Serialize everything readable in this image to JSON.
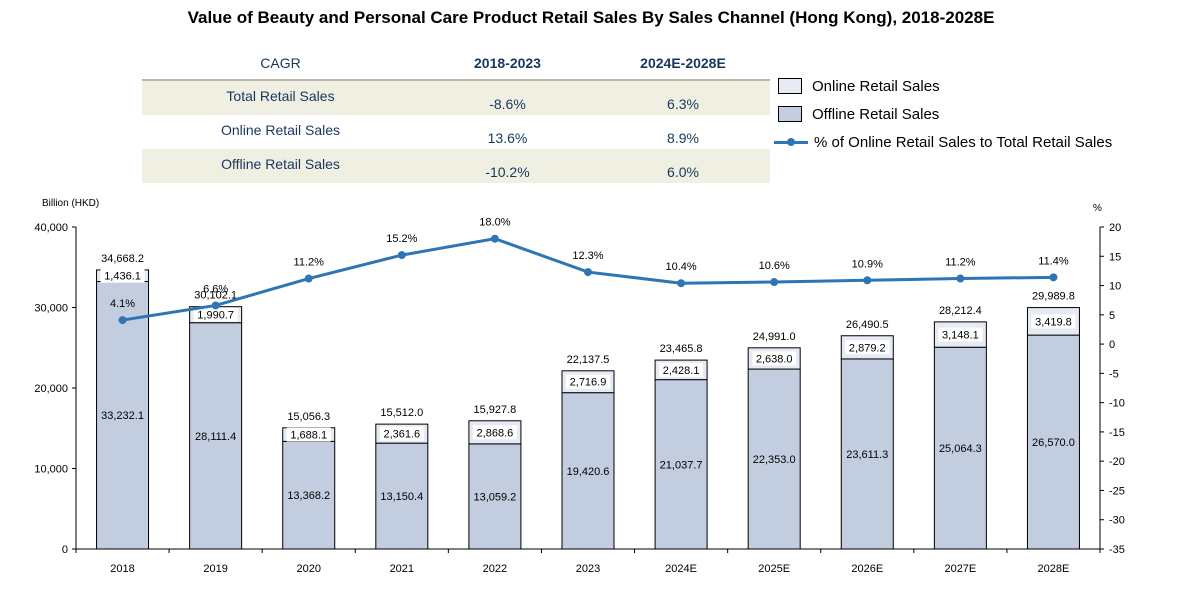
{
  "title": "Value of Beauty and Personal Care Product Retail Sales By Sales Channel (Hong Kong), 2018-2028E",
  "cagr_table": {
    "header": [
      "CAGR",
      "2018-2023",
      "2024E-2028E"
    ],
    "rows": [
      {
        "label": "Total Retail Sales",
        "v1": "-8.6%",
        "v2": "6.3%"
      },
      {
        "label": "Online Retail Sales",
        "v1": "13.6%",
        "v2": "8.9%"
      },
      {
        "label": "Offline Retail Sales",
        "v1": "-10.2%",
        "v2": "6.0%"
      }
    ]
  },
  "legend": {
    "online": "Online Retail Sales",
    "offline": "Offline Retail Sales",
    "pct": "% of Online Retail Sales to Total Retail Sales"
  },
  "colors": {
    "online": "#e6ebf3",
    "offline": "#c3cde0",
    "line": "#2e75b6",
    "cagr_text": "#17375e",
    "table_shade": "#efefe2"
  },
  "chart_data": {
    "type": "bar",
    "stacked": true,
    "categories": [
      "2018",
      "2019",
      "2020",
      "2021",
      "2022",
      "2023",
      "2024E",
      "2025E",
      "2026E",
      "2027E",
      "2028E"
    ],
    "series": [
      {
        "name": "Offline Retail Sales",
        "values": [
          33232.1,
          28111.4,
          13368.2,
          13150.4,
          13059.2,
          19420.6,
          21037.7,
          22353.0,
          23611.3,
          25064.3,
          26570.0
        ],
        "labels": [
          "33,232.1",
          "28,111.4",
          "13,368.2",
          "13,150.4",
          "13,059.2",
          "19,420.6",
          "21,037.7",
          "22,353.0",
          "23,611.3",
          "25,064.3",
          "26,570.0"
        ]
      },
      {
        "name": "Online Retail Sales",
        "values": [
          1436.1,
          1990.7,
          1688.1,
          2361.6,
          2868.6,
          2716.9,
          2428.1,
          2638.0,
          2879.2,
          3148.1,
          3419.8
        ],
        "labels": [
          "1,436.1",
          "1,990.7",
          "1,688.1",
          "2,361.6",
          "2,868.6",
          "2,716.9",
          "2,428.1",
          "2,638.0",
          "2,879.2",
          "3,148.1",
          "3,419.8"
        ]
      }
    ],
    "totals": [
      "34,668.2",
      "30,102.1",
      "15,056.3",
      "15,512.0",
      "15,927.8",
      "22,137.5",
      "23,465.8",
      "24,991.0",
      "26,490.5",
      "28,212.4",
      "29,989.8"
    ],
    "line": {
      "name": "% of Online Retail Sales to Total Retail Sales",
      "values": [
        4.1,
        6.6,
        11.2,
        15.2,
        18.0,
        12.3,
        10.4,
        10.6,
        10.9,
        11.2,
        11.4
      ],
      "labels": [
        "4.1%",
        "6.6%",
        "11.2%",
        "15.2%",
        "18.0%",
        "12.3%",
        "10.4%",
        "10.6%",
        "10.9%",
        "11.2%",
        "11.4%"
      ]
    },
    "ylabel": "Billion (HKD)",
    "y2label": "%",
    "ylim": [
      0,
      40000
    ],
    "y2lim": [
      -35,
      20
    ],
    "yticks": [
      "0",
      "10,000",
      "20,000",
      "30,000",
      "40,000"
    ],
    "y2ticks": [
      "-35",
      "-30",
      "-25",
      "-20",
      "-15",
      "-10",
      "-5",
      "0",
      "5",
      "10",
      "15",
      "20"
    ],
    "grid": false,
    "legend_position": "top-right"
  }
}
